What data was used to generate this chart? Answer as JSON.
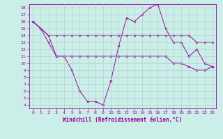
{
  "xlabel": "Windchill (Refroidissement éolien,°C)",
  "background_color": "#cceee8",
  "line_color": "#990099",
  "grid_color": "#aacccc",
  "xlim": [
    -0.5,
    23.5
  ],
  "ylim": [
    3.5,
    18.5
  ],
  "xticks": [
    0,
    1,
    2,
    3,
    4,
    5,
    6,
    7,
    8,
    9,
    10,
    11,
    12,
    13,
    14,
    15,
    16,
    17,
    18,
    19,
    20,
    21,
    22,
    23
  ],
  "yticks": [
    4,
    5,
    6,
    7,
    8,
    9,
    10,
    11,
    12,
    13,
    14,
    15,
    16,
    17,
    18
  ],
  "series": [
    [
      16,
      15,
      14,
      14,
      14,
      14,
      14,
      14,
      14,
      14,
      14,
      14,
      14,
      14,
      14,
      14,
      14,
      14,
      14,
      14,
      14,
      13,
      13,
      13
    ],
    [
      16,
      15,
      14,
      11,
      11,
      9,
      6,
      4.5,
      4.5,
      4,
      7.5,
      12.5,
      16.5,
      16,
      17,
      18,
      18.5,
      15,
      13,
      13,
      11,
      12,
      10,
      9.5
    ],
    [
      16,
      15,
      13,
      11,
      11,
      11,
      11,
      11,
      11,
      11,
      11,
      11,
      11,
      11,
      11,
      11,
      11,
      11,
      10,
      10,
      9.5,
      9,
      9,
      9.5
    ]
  ]
}
